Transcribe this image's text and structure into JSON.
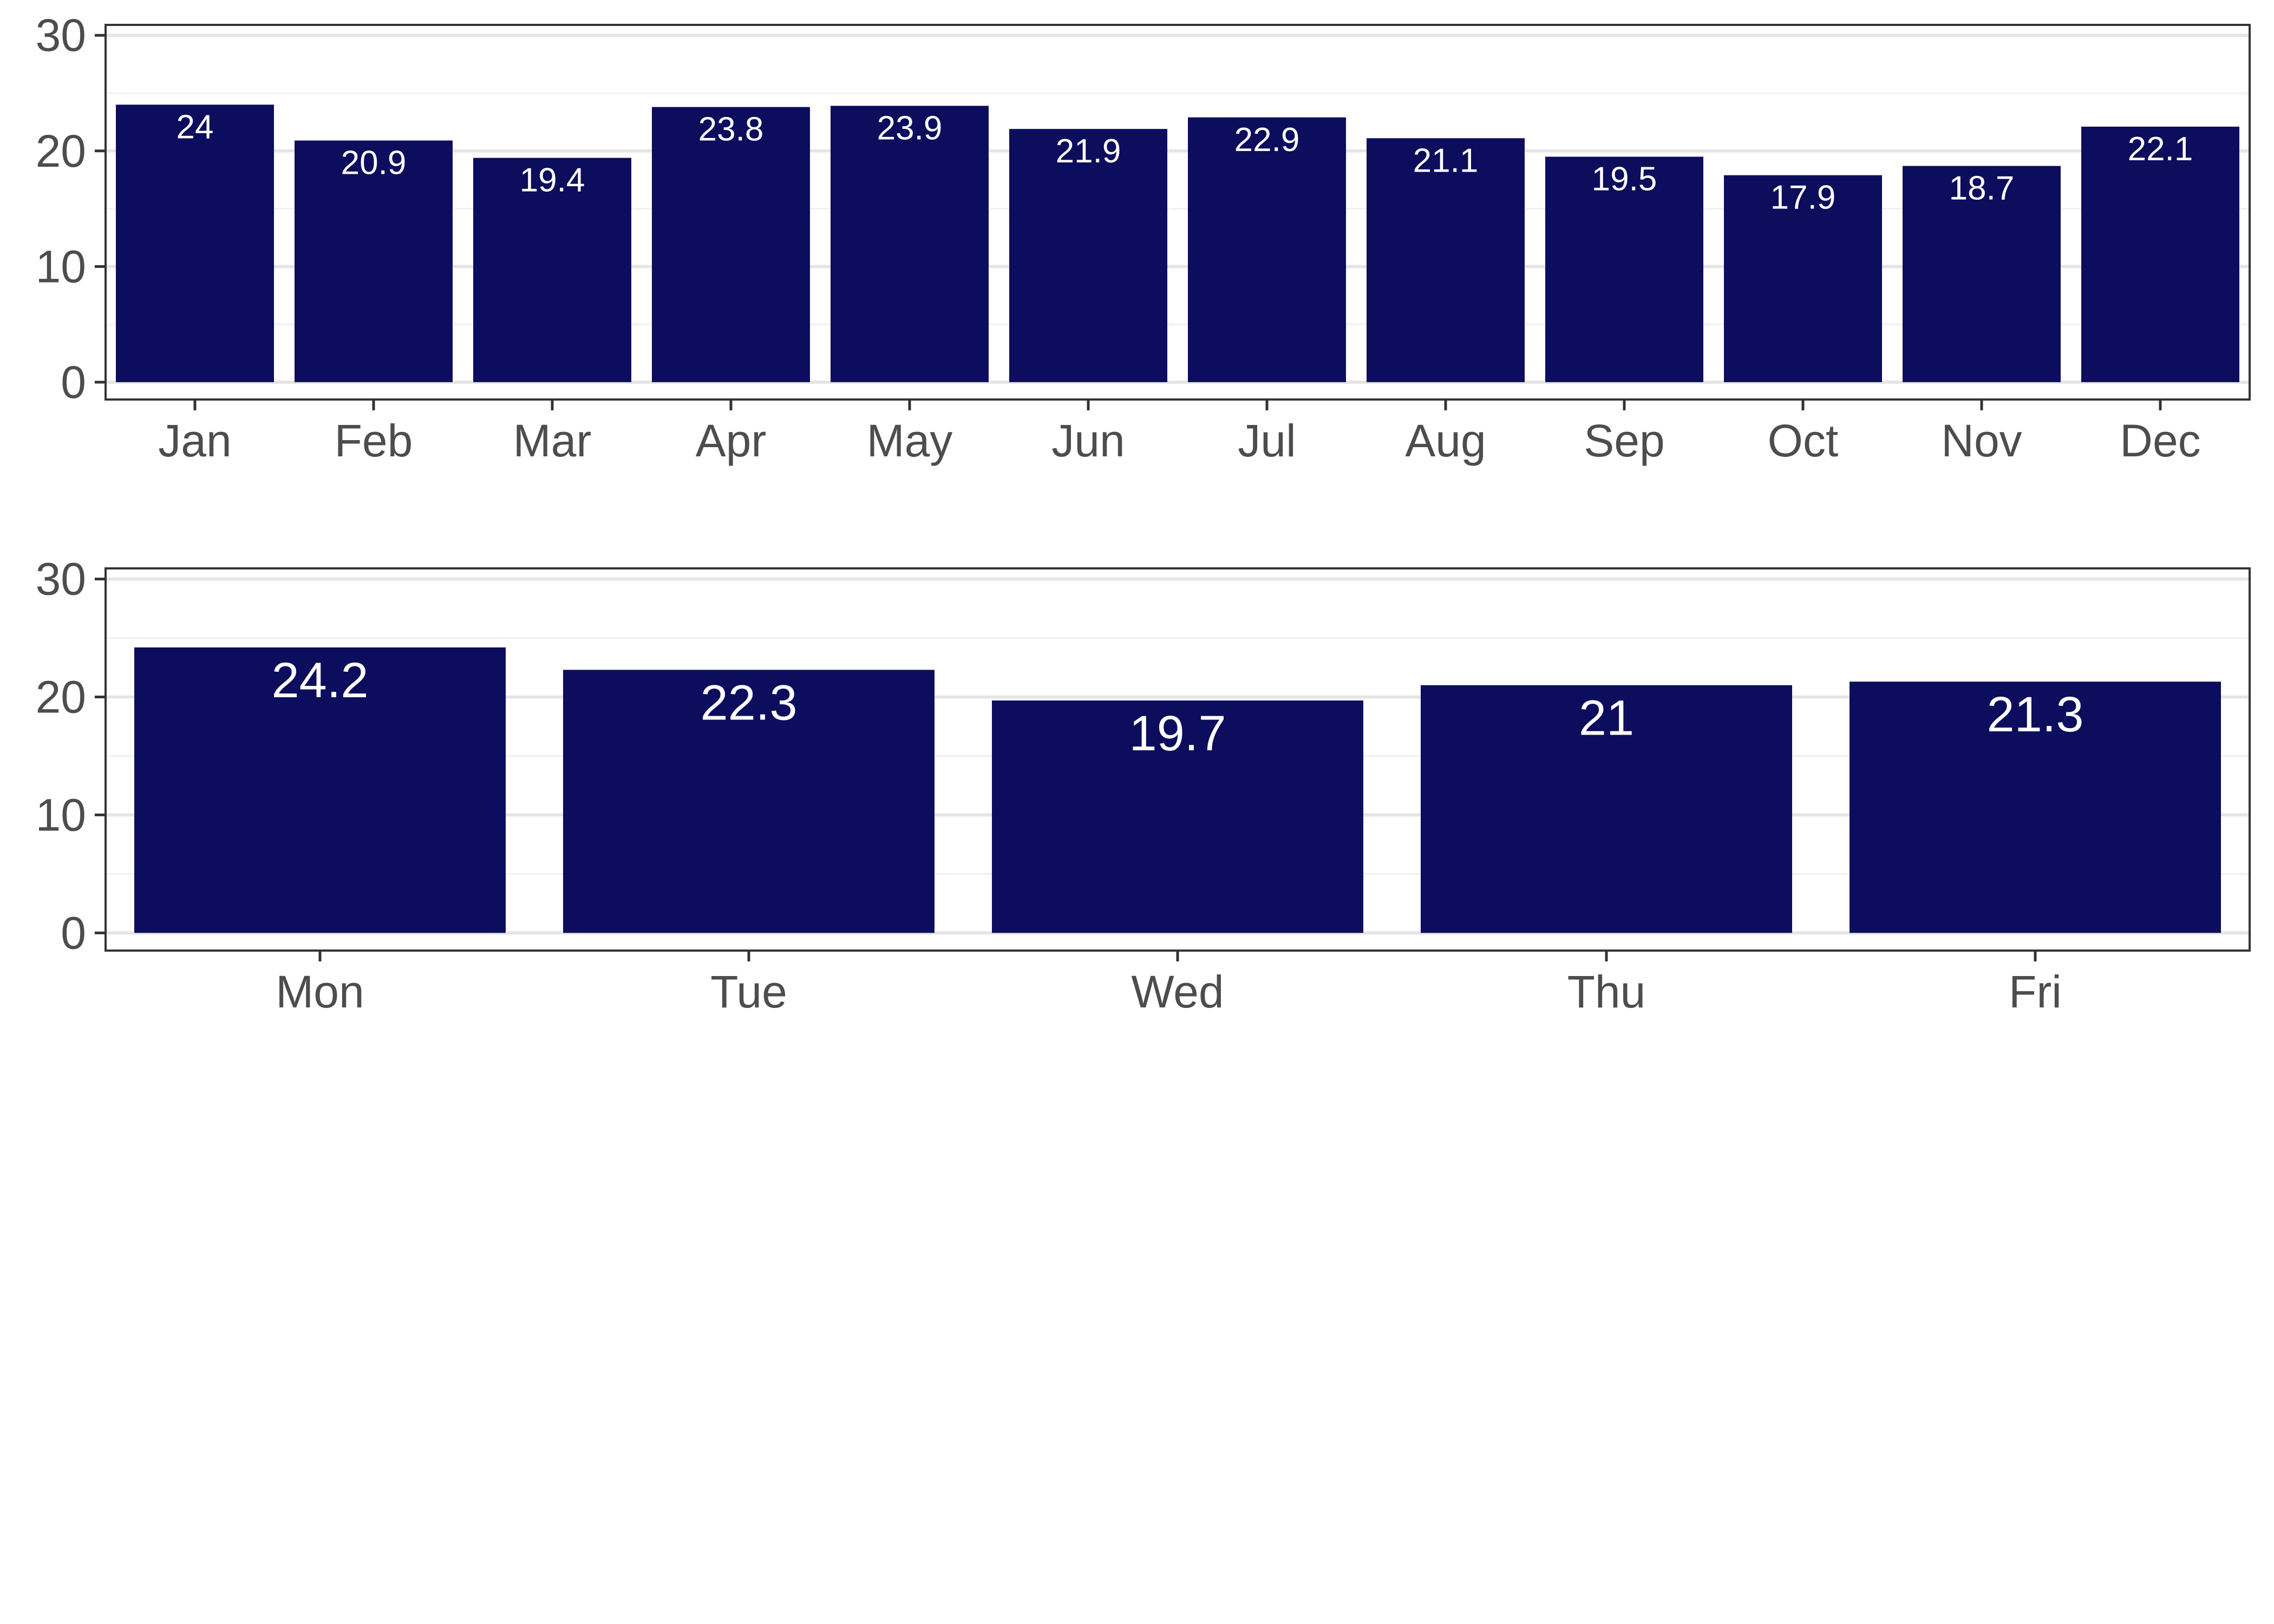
{
  "colors": {
    "bar": "#0d0d5e",
    "panel_border": "#333333",
    "grid_major": "#e5e5e5",
    "grid_minor": "#f0f0f0",
    "tick_text": "#4d4d4d",
    "bar_label": "#ffffff"
  },
  "chart_data": [
    {
      "type": "bar",
      "categories": [
        "Jan",
        "Feb",
        "Mar",
        "Apr",
        "May",
        "Jun",
        "Jul",
        "Aug",
        "Sep",
        "Oct",
        "Nov",
        "Dec"
      ],
      "values": [
        24,
        20.9,
        19.4,
        23.8,
        23.9,
        21.9,
        22.9,
        21.1,
        19.5,
        17.9,
        18.7,
        22.1
      ],
      "data_labels": [
        "24",
        "20.9",
        "19.4",
        "23.8",
        "23.9",
        "21.9",
        "22.9",
        "21.1",
        "19.5",
        "17.9",
        "18.7",
        "22.1"
      ],
      "yticks": [
        "0",
        "10",
        "20",
        "30"
      ],
      "ylim": [
        0,
        30
      ],
      "xlabel": "",
      "ylabel": "",
      "title": "",
      "grid": true,
      "legend": "none"
    },
    {
      "type": "bar",
      "categories": [
        "Mon",
        "Tue",
        "Wed",
        "Thu",
        "Fri"
      ],
      "values": [
        24.2,
        22.3,
        19.7,
        21,
        21.3
      ],
      "data_labels": [
        "24.2",
        "22.3",
        "19.7",
        "21",
        "21.3"
      ],
      "yticks": [
        "0",
        "10",
        "20",
        "30"
      ],
      "ylim": [
        0,
        30
      ],
      "xlabel": "",
      "ylabel": "",
      "title": "",
      "grid": true,
      "legend": "none"
    }
  ]
}
